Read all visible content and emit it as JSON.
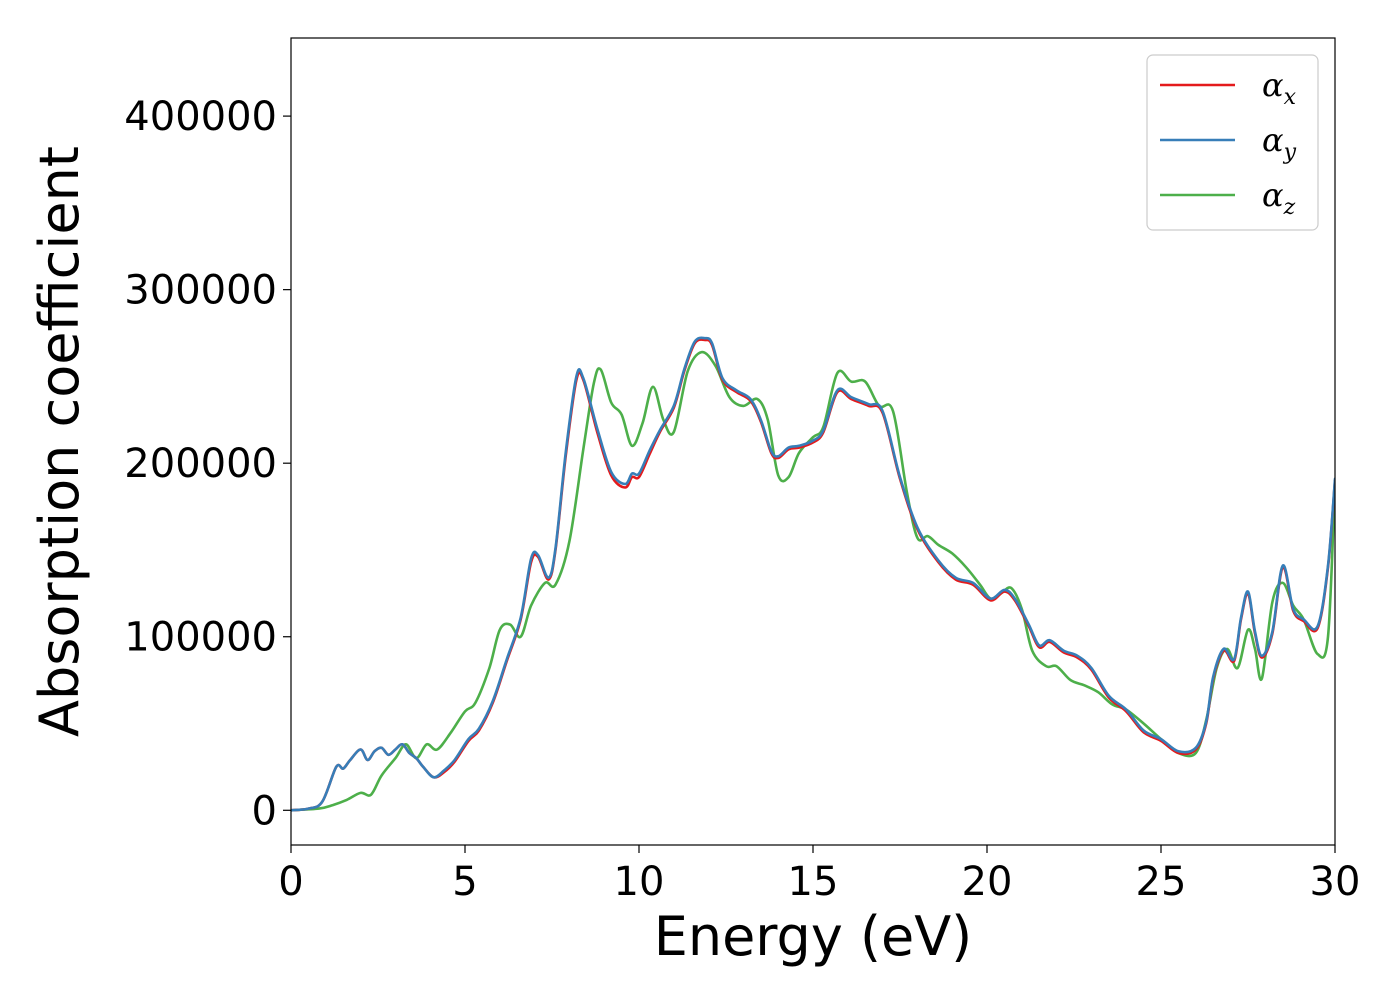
{
  "chart_data": {
    "type": "line",
    "title": "",
    "xlabel": "Energy (eV)",
    "ylabel": "Absorption coefficient",
    "xlim": [
      0,
      30
    ],
    "ylim": [
      -20000,
      445000
    ],
    "xticks": [
      0,
      5,
      10,
      15,
      20,
      25,
      30
    ],
    "yticks": [
      0,
      100000,
      200000,
      300000,
      400000
    ],
    "xtick_labels": [
      "0",
      "5",
      "10",
      "15",
      "20",
      "25",
      "30"
    ],
    "ytick_labels": [
      "0",
      "100000",
      "200000",
      "300000",
      "400000"
    ],
    "grid": false,
    "legend_position": "top-right",
    "series": [
      {
        "name": "αx",
        "symbol": "α",
        "subscript": "x",
        "color": "#e41a1c",
        "x": [
          0,
          0.5,
          0.9,
          1.3,
          1.5,
          1.7,
          2.0,
          2.2,
          2.4,
          2.6,
          2.8,
          3.0,
          3.2,
          3.4,
          3.6,
          3.8,
          4.1,
          4.4,
          4.7,
          5.1,
          5.4,
          5.8,
          6.2,
          6.6,
          6.9,
          7.1,
          7.4,
          7.6,
          7.9,
          8.2,
          8.4,
          8.8,
          9.2,
          9.6,
          9.8,
          10.0,
          10.3,
          10.6,
          11.0,
          11.3,
          11.6,
          11.9,
          12.1,
          12.4,
          12.8,
          13.2,
          13.5,
          13.8,
          14.0,
          14.3,
          14.6,
          15.0,
          15.3,
          15.7,
          16.1,
          16.6,
          17.0,
          17.5,
          18.0,
          18.6,
          19.1,
          19.6,
          20.1,
          20.5,
          20.8,
          21.2,
          21.5,
          21.8,
          22.2,
          22.6,
          23.0,
          23.5,
          24.0,
          24.5,
          25.0,
          25.5,
          26.0,
          26.3,
          26.5,
          26.8,
          27.1,
          27.3,
          27.5,
          27.7,
          27.9,
          28.2,
          28.5,
          28.8,
          29.1,
          29.5,
          29.8,
          30.0
        ],
        "values": [
          0,
          1000,
          5000,
          25000,
          24000,
          29000,
          35000,
          29000,
          34000,
          36000,
          32000,
          35000,
          38000,
          33000,
          30000,
          25000,
          19000,
          22000,
          28000,
          40000,
          46000,
          62000,
          86000,
          110000,
          143000,
          146000,
          133000,
          150000,
          205000,
          248000,
          248000,
          218000,
          193000,
          186000,
          192000,
          192000,
          205000,
          218000,
          232000,
          253000,
          269000,
          271000,
          268000,
          248000,
          241000,
          236000,
          224000,
          206000,
          203000,
          208000,
          209000,
          212000,
          218000,
          241000,
          237000,
          233000,
          229000,
          191000,
          162000,
          143000,
          133000,
          130000,
          121000,
          126000,
          121000,
          106000,
          94000,
          97000,
          91000,
          88000,
          81000,
          65000,
          57000,
          45000,
          40000,
          33000,
          35000,
          50000,
          76000,
          92000,
          86000,
          110000,
          125000,
          102000,
          88000,
          102000,
          140000,
          115000,
          109000,
          105000,
          140000,
          190000
        ]
      },
      {
        "name": "αy",
        "symbol": "α",
        "subscript": "y",
        "color": "#377eb8",
        "x": [
          0,
          0.5,
          0.9,
          1.3,
          1.5,
          1.7,
          2.0,
          2.2,
          2.4,
          2.6,
          2.8,
          3.0,
          3.2,
          3.4,
          3.6,
          3.8,
          4.1,
          4.4,
          4.7,
          5.1,
          5.4,
          5.8,
          6.2,
          6.6,
          6.9,
          7.1,
          7.4,
          7.6,
          7.9,
          8.2,
          8.4,
          8.8,
          9.2,
          9.6,
          9.8,
          10.0,
          10.3,
          10.6,
          11.0,
          11.3,
          11.6,
          11.9,
          12.1,
          12.4,
          12.8,
          13.2,
          13.5,
          13.8,
          14.0,
          14.3,
          14.6,
          15.0,
          15.3,
          15.7,
          16.1,
          16.6,
          17.0,
          17.5,
          18.0,
          18.6,
          19.1,
          19.6,
          20.1,
          20.5,
          20.8,
          21.2,
          21.5,
          21.8,
          22.2,
          22.6,
          23.0,
          23.5,
          24.0,
          24.5,
          25.0,
          25.5,
          26.0,
          26.3,
          26.5,
          26.8,
          27.1,
          27.3,
          27.5,
          27.7,
          27.9,
          28.2,
          28.5,
          28.8,
          29.1,
          29.5,
          29.8,
          30.0
        ],
        "values": [
          0,
          1000,
          5000,
          25000,
          24000,
          29000,
          35000,
          29000,
          34000,
          36000,
          32000,
          35000,
          38000,
          33000,
          30000,
          25000,
          19000,
          23000,
          29000,
          41000,
          47000,
          63000,
          87000,
          111000,
          145000,
          147000,
          134000,
          151000,
          207000,
          250000,
          249000,
          220000,
          195000,
          188000,
          194000,
          194000,
          207000,
          219000,
          233000,
          254000,
          270000,
          272000,
          269000,
          249000,
          242000,
          237000,
          225000,
          207000,
          204000,
          209000,
          210000,
          213000,
          219000,
          242000,
          238000,
          234000,
          230000,
          192000,
          163000,
          144000,
          134000,
          131000,
          122000,
          127000,
          122000,
          107000,
          95000,
          98000,
          92000,
          89000,
          82000,
          66000,
          58000,
          46000,
          41000,
          34000,
          36000,
          51000,
          77000,
          93000,
          87000,
          111000,
          126000,
          103000,
          89000,
          103000,
          141000,
          116000,
          110000,
          106000,
          141000,
          191000
        ]
      },
      {
        "name": "αz",
        "symbol": "α",
        "subscript": "z",
        "color": "#4daf4a",
        "x": [
          0,
          0.8,
          1.2,
          1.6,
          2.0,
          2.3,
          2.6,
          3.0,
          3.3,
          3.6,
          3.9,
          4.2,
          4.6,
          5.0,
          5.3,
          5.7,
          6.0,
          6.3,
          6.6,
          6.9,
          7.3,
          7.6,
          8.0,
          8.4,
          8.7,
          8.9,
          9.2,
          9.5,
          9.8,
          10.1,
          10.4,
          10.7,
          11.0,
          11.4,
          11.8,
          12.2,
          12.6,
          13.0,
          13.4,
          13.7,
          14.0,
          14.3,
          14.6,
          15.0,
          15.3,
          15.7,
          16.1,
          16.5,
          16.9,
          17.3,
          17.7,
          18.0,
          18.3,
          18.6,
          19.0,
          19.4,
          19.8,
          20.1,
          20.4,
          20.7,
          21.0,
          21.3,
          21.7,
          22.0,
          22.4,
          22.8,
          23.2,
          23.6,
          24.0,
          24.5,
          25.0,
          25.5,
          26.0,
          26.3,
          26.6,
          26.9,
          27.2,
          27.5,
          27.7,
          27.9,
          28.2,
          28.5,
          28.8,
          29.1,
          29.5,
          29.8,
          30.0
        ],
        "values": [
          0,
          1000,
          3000,
          6000,
          10000,
          9000,
          20000,
          30000,
          38000,
          30000,
          38000,
          35000,
          45000,
          57000,
          62000,
          82000,
          104000,
          107000,
          100000,
          118000,
          131000,
          130000,
          155000,
          208000,
          246000,
          254000,
          235000,
          228000,
          210000,
          223000,
          244000,
          225000,
          218000,
          253000,
          264000,
          256000,
          238000,
          233000,
          237000,
          225000,
          193000,
          192000,
          206000,
          215000,
          221000,
          252000,
          247000,
          247000,
          233000,
          230000,
          183000,
          157000,
          158000,
          153000,
          148000,
          140000,
          130000,
          122000,
          125000,
          128000,
          116000,
          92000,
          83000,
          83000,
          75000,
          72000,
          68000,
          61000,
          58000,
          50000,
          41000,
          33000,
          33000,
          52000,
          82000,
          93000,
          82000,
          104000,
          93000,
          76000,
          120000,
          131000,
          118000,
          110000,
          90000,
          100000,
          190000
        ]
      }
    ]
  }
}
